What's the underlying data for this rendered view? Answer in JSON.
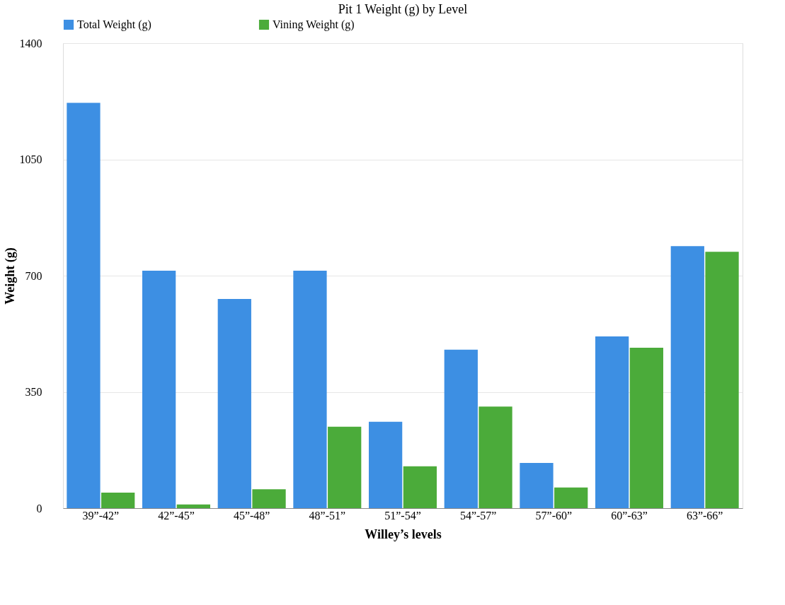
{
  "chart_data": {
    "type": "bar",
    "title": "Pit 1 Weight (g) by Level",
    "xlabel": "Willey’s levels",
    "ylabel": "Weight (g)",
    "categories": [
      "39”-42”",
      "42”-45”",
      "45”-48”",
      "48”-51”",
      "51”-54”",
      "54”-57”",
      "57”-60”",
      "60”-63”",
      "63”-66”"
    ],
    "series": [
      {
        "name": "Total Weight (g)",
        "color": "#3d8fe3",
        "values": [
          1220,
          715,
          630,
          715,
          260,
          477,
          136,
          517,
          789
        ]
      },
      {
        "name": "Vining Weight (g)",
        "color": "#4bab3a",
        "values": [
          47,
          11,
          57,
          245,
          126,
          306,
          62,
          483,
          772
        ]
      }
    ],
    "ylim": [
      0,
      1400
    ],
    "yticks": [
      0,
      350,
      700,
      1050,
      1400
    ],
    "grid": "y",
    "legend": "top"
  }
}
